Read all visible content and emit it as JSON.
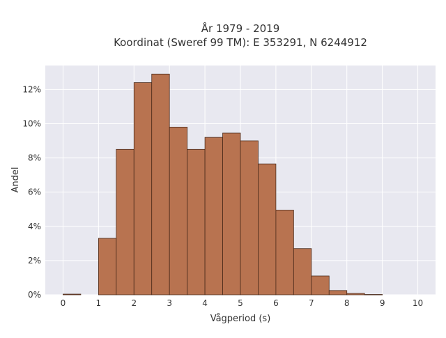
{
  "chart_data": {
    "type": "bar",
    "title_lines": [
      "År 1979 - 2019",
      "Koordinat (Sweref 99 TM): E 353291, N 6244912"
    ],
    "xlabel": "Vågperiod (s)",
    "ylabel": "Andel",
    "bin_width": 0.5,
    "bins": [
      {
        "x0": 0.0,
        "x1": 0.5,
        "value": 0.04
      },
      {
        "x0": 0.5,
        "x1": 1.0,
        "value": 0.0
      },
      {
        "x0": 1.0,
        "x1": 1.5,
        "value": 3.3
      },
      {
        "x0": 1.5,
        "x1": 2.0,
        "value": 8.5
      },
      {
        "x0": 2.0,
        "x1": 2.5,
        "value": 12.4
      },
      {
        "x0": 2.5,
        "x1": 3.0,
        "value": 12.9
      },
      {
        "x0": 3.0,
        "x1": 3.5,
        "value": 9.8
      },
      {
        "x0": 3.5,
        "x1": 4.0,
        "value": 8.5
      },
      {
        "x0": 4.0,
        "x1": 4.5,
        "value": 9.2
      },
      {
        "x0": 4.5,
        "x1": 5.0,
        "value": 9.45
      },
      {
        "x0": 5.0,
        "x1": 5.5,
        "value": 9.0
      },
      {
        "x0": 5.5,
        "x1": 6.0,
        "value": 7.65
      },
      {
        "x0": 6.0,
        "x1": 6.5,
        "value": 4.95
      },
      {
        "x0": 6.5,
        "x1": 7.0,
        "value": 2.7
      },
      {
        "x0": 7.0,
        "x1": 7.5,
        "value": 1.1
      },
      {
        "x0": 7.5,
        "x1": 8.0,
        "value": 0.25
      },
      {
        "x0": 8.0,
        "x1": 8.5,
        "value": 0.08
      },
      {
        "x0": 8.5,
        "x1": 9.0,
        "value": 0.02
      }
    ],
    "xlim": [
      -0.5,
      10.5
    ],
    "ylim": [
      0,
      13.4
    ],
    "x_ticks": [
      0,
      1,
      2,
      3,
      4,
      5,
      6,
      7,
      8,
      9,
      10
    ],
    "x_tick_labels": [
      "0",
      "1",
      "2",
      "3",
      "4",
      "5",
      "6",
      "7",
      "8",
      "9",
      "10"
    ],
    "y_ticks": [
      0,
      2,
      4,
      6,
      8,
      10,
      12
    ],
    "y_tick_labels": [
      "0%",
      "2%",
      "4%",
      "6%",
      "8%",
      "10%",
      "12%"
    ],
    "y_unit": "%",
    "grid": true,
    "legend": "none",
    "colors": {
      "bar_fill": "#b87350",
      "bar_edge": "#4a2a1a",
      "plot_bg": "#e8e8f0",
      "grid": "#ffffff",
      "text": "#333333"
    }
  }
}
